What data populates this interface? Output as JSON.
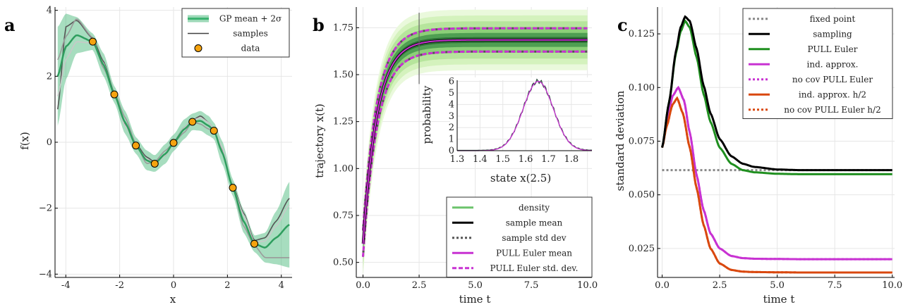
{
  "panels": [
    {
      "letter": "a"
    },
    {
      "letter": "b"
    },
    {
      "letter": "c"
    }
  ],
  "chart_data": [
    {
      "type": "line",
      "panel": "a",
      "xlabel": "x",
      "ylabel": "f(x)",
      "xlim": [
        -4.4,
        4.4
      ],
      "ylim": [
        -4.1,
        4.1
      ],
      "xticks": [
        -4,
        -2,
        0,
        2,
        4
      ],
      "yticks": [
        -4,
        -2,
        0,
        2,
        4
      ],
      "legend_position": "top-right",
      "legend": [
        {
          "label": "GP mean + 2σ",
          "kind": "band",
          "color": "#3cb371"
        },
        {
          "label": "samples",
          "kind": "line",
          "color": "#404040"
        },
        {
          "label": "data",
          "kind": "marker",
          "color": "#f5a30f"
        }
      ],
      "data_points": {
        "x": [
          -3.0,
          -2.2,
          -1.4,
          -0.7,
          0.0,
          0.7,
          1.5,
          2.2,
          3.0
        ],
        "y": [
          3.05,
          1.45,
          -0.1,
          -0.65,
          -0.02,
          0.62,
          0.35,
          -1.38,
          -3.08
        ]
      },
      "mean": {
        "x": [
          -4.3,
          -4.0,
          -3.6,
          -3.0,
          -2.6,
          -2.2,
          -1.8,
          -1.4,
          -1.0,
          -0.7,
          -0.3,
          0.0,
          0.4,
          0.7,
          1.0,
          1.3,
          1.5,
          1.8,
          2.2,
          2.6,
          3.0,
          3.4,
          3.8,
          4.3
        ],
        "y": [
          2.0,
          2.9,
          3.25,
          3.05,
          2.35,
          1.45,
          0.6,
          -0.1,
          -0.55,
          -0.65,
          -0.35,
          -0.02,
          0.4,
          0.62,
          0.65,
          0.5,
          0.35,
          -0.3,
          -1.38,
          -2.4,
          -3.08,
          -3.2,
          -2.9,
          -2.5
        ]
      },
      "band_halfwidth": [
        1.5,
        1.0,
        0.55,
        0.25,
        0.35,
        0.25,
        0.35,
        0.25,
        0.3,
        0.25,
        0.3,
        0.25,
        0.3,
        0.25,
        0.3,
        0.3,
        0.25,
        0.35,
        0.25,
        0.35,
        0.25,
        0.45,
        0.8,
        1.3
      ],
      "sample_offsets": [
        [
          -1.0,
          0.6,
          0.45,
          0.1,
          0.1,
          0.05,
          -0.05,
          0.05,
          0.1,
          0.05,
          -0.05,
          0.02,
          0.05,
          0.05,
          0.15,
          0.1,
          0.05,
          0.0,
          0.05,
          0.25,
          0.1,
          0.3,
          0.5,
          0.8
        ],
        [
          0.5,
          0.3,
          0.5,
          0.12,
          -0.1,
          0.06,
          0.15,
          0.06,
          -0.1,
          0.06,
          0.1,
          0.0,
          -0.1,
          0.0,
          -0.1,
          -0.1,
          0.0,
          0.1,
          0.0,
          -0.15,
          -0.05,
          -0.3,
          -0.6,
          -1.0
        ],
        [
          -0.6,
          -0.4,
          -0.2,
          -0.05,
          0.05,
          0.0,
          -0.1,
          0.0,
          0.05,
          0.0,
          -0.05,
          0.0,
          0.05,
          0.05,
          0.1,
          0.1,
          0.05,
          0.15,
          0.0,
          0.2,
          0.05,
          0.2,
          0.35,
          0.6
        ]
      ]
    },
    {
      "type": "line",
      "panel": "b",
      "xlabel": "time t",
      "ylabel": "trajectory x(t)",
      "xlim": [
        -0.3,
        10.2
      ],
      "ylim": [
        0.42,
        1.86
      ],
      "xticks": [
        0.0,
        2.5,
        5.0,
        7.5,
        10.0
      ],
      "xticklabels": [
        "0.0",
        "2.5",
        "5.0",
        "7.5",
        "10.0"
      ],
      "yticks": [
        0.5,
        0.75,
        1.0,
        1.25,
        1.5,
        1.75
      ],
      "yticklabels": [
        "0.50",
        "0.75",
        "1.00",
        "1.25",
        "1.50",
        "1.75"
      ],
      "vline_x": 2.5,
      "legend_position": "bottom-right",
      "legend": [
        {
          "label": "density",
          "kind": "line",
          "color": "#6cc36c",
          "width": 3
        },
        {
          "label": "sample mean",
          "kind": "line",
          "color": "#000000",
          "width": 3
        },
        {
          "label": "sample std dev",
          "kind": "dot",
          "color": "#555555",
          "width": 3
        },
        {
          "label": "PULL Euler mean",
          "kind": "line",
          "color": "#c832d2",
          "width": 3
        },
        {
          "label": "PULL Euler std. dev.",
          "kind": "dash",
          "color": "#c832d2",
          "width": 3
        }
      ],
      "trajectory": {
        "x0": 0.6,
        "x_inf": 1.685,
        "rate": 1.6
      },
      "std_dev": {
        "s0": 0.07,
        "s_inf": 0.062
      },
      "inset": {
        "xlabel": "state x(2.5)",
        "ylabel": "probability",
        "xlim": [
          1.3,
          1.89
        ],
        "ylim": [
          0,
          6.1
        ],
        "xticks": [
          1.3,
          1.4,
          1.5,
          1.6,
          1.7,
          1.8
        ],
        "xticklabels": [
          "1.3",
          "1.4",
          "1.5",
          "1.6",
          "1.7",
          "1.8"
        ],
        "yticks": [
          0,
          1,
          2,
          3,
          4,
          5,
          6
        ],
        "yticklabels": [
          "0",
          "1",
          "2",
          "3",
          "4",
          "5",
          "6"
        ],
        "density_mean": 1.655,
        "density_sd": 0.066,
        "density_peak": 6.0
      }
    },
    {
      "type": "line",
      "panel": "c",
      "xlabel": "time t",
      "ylabel": "standard deviation",
      "xlim": [
        -0.2,
        10.1
      ],
      "ylim": [
        0.0115,
        0.1375
      ],
      "xticks": [
        0.0,
        2.5,
        5.0,
        7.5,
        10.0
      ],
      "xticklabels": [
        "0.0",
        "2.5",
        "5.0",
        "7.5",
        "10.0"
      ],
      "yticks": [
        0.025,
        0.05,
        0.075,
        0.1,
        0.125
      ],
      "yticklabels": [
        "0.025",
        "0.050",
        "0.075",
        "0.100",
        "0.125"
      ],
      "legend_position": "top-right",
      "series": [
        {
          "name": "fixed point",
          "style": "dot",
          "color": "#888888",
          "width": 3,
          "x": [
            0.0,
            10.0
          ],
          "y": [
            0.0615,
            0.0615
          ]
        },
        {
          "name": "sampling",
          "style": "line",
          "color": "#000000",
          "width": 3,
          "x": [
            0.0,
            0.3,
            0.6,
            0.8,
            1.0,
            1.2,
            1.5,
            1.8,
            2.1,
            2.5,
            3.0,
            3.5,
            4.0,
            5.0,
            6.0,
            8.0,
            10.0
          ],
          "y": [
            0.072,
            0.093,
            0.117,
            0.128,
            0.133,
            0.131,
            0.118,
            0.101,
            0.088,
            0.076,
            0.068,
            0.0645,
            0.063,
            0.0618,
            0.0615,
            0.0615,
            0.0615
          ]
        },
        {
          "name": "PULL Euler",
          "style": "line",
          "color": "#1f8f1f",
          "width": 3,
          "x": [
            0.0,
            0.3,
            0.6,
            0.8,
            1.0,
            1.2,
            1.5,
            1.8,
            2.1,
            2.5,
            3.0,
            3.5,
            4.0,
            5.0,
            6.0,
            8.0,
            10.0
          ],
          "y": [
            0.072,
            0.093,
            0.116,
            0.126,
            0.131,
            0.128,
            0.114,
            0.097,
            0.084,
            0.072,
            0.0645,
            0.0615,
            0.0605,
            0.0598,
            0.0596,
            0.0596,
            0.0596
          ]
        },
        {
          "name": "ind. approx.",
          "style": "line",
          "color": "#c832d2",
          "width": 3,
          "x": [
            0.0,
            0.2,
            0.45,
            0.7,
            0.95,
            1.2,
            1.5,
            1.8,
            2.1,
            2.5,
            3.0,
            3.5,
            4.0,
            5.0,
            6.0,
            8.0,
            10.0
          ],
          "y": [
            0.072,
            0.083,
            0.096,
            0.1,
            0.094,
            0.079,
            0.059,
            0.043,
            0.032,
            0.025,
            0.0215,
            0.0205,
            0.0202,
            0.0201,
            0.02,
            0.02,
            0.02
          ]
        },
        {
          "name": "no cov PULL Euler",
          "style": "dot",
          "color": "#c832d2",
          "width": 3,
          "x": [
            0.0,
            0.2,
            0.45,
            0.7,
            0.95,
            1.2,
            1.5,
            1.8,
            2.1,
            2.5,
            3.0,
            3.5,
            4.0,
            5.0,
            6.0,
            8.0,
            10.0
          ],
          "y": [
            0.072,
            0.083,
            0.096,
            0.1,
            0.094,
            0.079,
            0.059,
            0.043,
            0.032,
            0.025,
            0.0215,
            0.0205,
            0.0202,
            0.0201,
            0.02,
            0.02,
            0.02
          ]
        },
        {
          "name": "ind. approx. h/2",
          "style": "line",
          "color": "#d9480f",
          "width": 3,
          "x": [
            0.0,
            0.2,
            0.45,
            0.65,
            0.9,
            1.2,
            1.5,
            1.8,
            2.1,
            2.5,
            3.0,
            3.5,
            4.0,
            5.0,
            6.0,
            8.0,
            10.0
          ],
          "y": [
            0.072,
            0.082,
            0.092,
            0.095,
            0.088,
            0.072,
            0.053,
            0.036,
            0.025,
            0.018,
            0.015,
            0.0142,
            0.014,
            0.0139,
            0.0138,
            0.0138,
            0.0138
          ]
        },
        {
          "name": "no cov PULL Euler h/2",
          "style": "dot",
          "color": "#d9480f",
          "width": 3,
          "x": [
            0.0,
            0.2,
            0.45,
            0.65,
            0.9,
            1.2,
            1.5,
            1.8,
            2.1,
            2.5,
            3.0,
            3.5,
            4.0,
            5.0,
            6.0,
            8.0,
            10.0
          ],
          "y": [
            0.072,
            0.082,
            0.092,
            0.095,
            0.088,
            0.072,
            0.053,
            0.036,
            0.025,
            0.018,
            0.015,
            0.0142,
            0.014,
            0.0139,
            0.0138,
            0.0138,
            0.0138
          ]
        }
      ]
    }
  ]
}
